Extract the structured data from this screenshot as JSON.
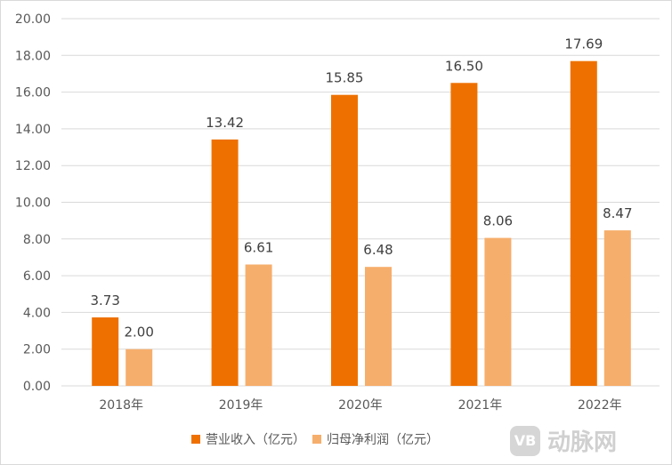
{
  "chart_data": {
    "type": "bar",
    "categories": [
      "2018年",
      "2019年",
      "2020年",
      "2021年",
      "2022年"
    ],
    "series": [
      {
        "name": "营业收入（亿元）",
        "color": "#ee7100",
        "values": [
          3.73,
          13.42,
          15.85,
          16.5,
          17.69
        ]
      },
      {
        "name": "归母净利润（亿元）",
        "color": "#f6ae6c",
        "values": [
          2.0,
          6.61,
          6.48,
          8.06,
          8.47
        ]
      }
    ],
    "ylim": [
      0,
      20
    ],
    "yticks": [
      "0.00",
      "2.00",
      "4.00",
      "6.00",
      "8.00",
      "10.00",
      "12.00",
      "14.00",
      "16.00",
      "18.00",
      "20.00"
    ],
    "grid": true,
    "legend": "bottom"
  },
  "watermark": {
    "logo": "VB",
    "text": "动脉网"
  }
}
